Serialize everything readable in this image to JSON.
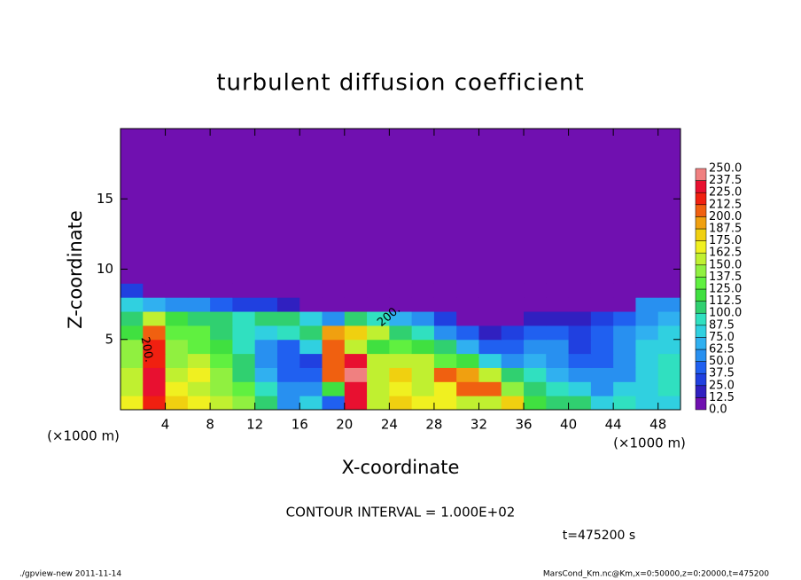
{
  "chart_data": {
    "type": "heatmap",
    "title": "turbulent diffusion coefficient",
    "x_label": "X-coordinate",
    "y_label": "Z-coordinate",
    "x_unit_label": "(×1000 m)",
    "y_unit_label": "(×1000 m)",
    "xlim": [
      0,
      50
    ],
    "ylim": [
      0,
      20
    ],
    "xticks": [
      4,
      8,
      12,
      16,
      20,
      24,
      28,
      32,
      36,
      40,
      44,
      48
    ],
    "yticks": [
      5,
      10,
      15
    ],
    "x_edges": [
      0,
      2,
      4,
      6,
      8,
      10,
      12,
      14,
      16,
      18,
      20,
      22,
      24,
      26,
      28,
      30,
      32,
      34,
      36,
      38,
      40,
      42,
      44,
      46,
      48,
      50
    ],
    "y_edges": [
      0,
      1,
      2,
      3,
      4,
      5,
      6,
      7,
      8,
      9,
      20
    ],
    "z": [
      [
        170,
        220,
        175,
        165,
        150,
        140,
        110,
        60,
        75,
        40,
        225,
        160,
        175,
        170,
        165,
        160,
        150,
        175,
        120,
        110,
        100,
        85,
        90,
        80,
        85
      ],
      [
        160,
        225,
        165,
        160,
        145,
        130,
        90,
        50,
        60,
        120,
        230,
        150,
        165,
        150,
        170,
        200,
        210,
        140,
        110,
        90,
        80,
        60,
        75,
        85,
        90
      ],
      [
        150,
        225,
        155,
        170,
        140,
        110,
        70,
        45,
        40,
        200,
        245,
        160,
        175,
        160,
        210,
        190,
        160,
        100,
        90,
        70,
        60,
        50,
        60,
        80,
        90
      ],
      [
        145,
        220,
        140,
        150,
        130,
        100,
        60,
        40,
        35,
        210,
        230,
        150,
        160,
        150,
        130,
        120,
        80,
        60,
        70,
        55,
        40,
        40,
        60,
        80,
        90
      ],
      [
        140,
        215,
        140,
        130,
        120,
        95,
        55,
        40,
        80,
        200,
        160,
        120,
        130,
        120,
        100,
        70,
        40,
        40,
        60,
        50,
        35,
        40,
        55,
        75,
        85
      ],
      [
        120,
        205,
        130,
        125,
        110,
        90,
        80,
        90,
        110,
        190,
        180,
        150,
        110,
        90,
        60,
        40,
        20,
        25,
        40,
        40,
        30,
        40,
        50,
        70,
        80
      ],
      [
        100,
        150,
        120,
        110,
        100,
        90,
        100,
        110,
        80,
        60,
        100,
        90,
        70,
        50,
        25,
        10,
        5,
        10,
        20,
        20,
        20,
        30,
        40,
        60,
        70
      ],
      [
        75,
        70,
        60,
        50,
        40,
        35,
        30,
        20,
        10,
        5,
        5,
        5,
        5,
        5,
        5,
        5,
        5,
        5,
        5,
        5,
        5,
        5,
        10,
        50,
        60
      ],
      [
        30,
        10,
        5,
        5,
        5,
        5,
        5,
        5,
        5,
        5,
        5,
        5,
        5,
        5,
        5,
        5,
        5,
        5,
        5,
        5,
        5,
        5,
        5,
        5,
        5
      ],
      [
        0,
        0,
        0,
        0,
        0,
        0,
        0,
        0,
        0,
        0,
        0,
        0,
        0,
        0,
        0,
        0,
        0,
        0,
        0,
        0,
        0,
        0,
        0,
        0,
        0
      ]
    ],
    "colorbar_ticks": [
      {
        "value": 0,
        "label": "0.0"
      },
      {
        "value": 12.5,
        "label": "12.5"
      },
      {
        "value": 25,
        "label": "25.0"
      },
      {
        "value": 37.5,
        "label": "37.5"
      },
      {
        "value": 50,
        "label": "50.0"
      },
      {
        "value": 62.5,
        "label": "62.5"
      },
      {
        "value": 75,
        "label": "75.0"
      },
      {
        "value": 87.5,
        "label": "87.5"
      },
      {
        "value": 100,
        "label": "100.0"
      },
      {
        "value": 112.5,
        "label": "112.5"
      },
      {
        "value": 125,
        "label": "125.0"
      },
      {
        "value": 137.5,
        "label": "137.5"
      },
      {
        "value": 150,
        "label": "150.0"
      },
      {
        "value": 162.5,
        "label": "162.5"
      },
      {
        "value": 175,
        "label": "175.0"
      },
      {
        "value": 187.5,
        "label": "187.5"
      },
      {
        "value": 200,
        "label": "200.0"
      },
      {
        "value": 212.5,
        "label": "212.5"
      },
      {
        "value": 225,
        "label": "225.0"
      },
      {
        "value": 237.5,
        "label": "237.5"
      },
      {
        "value": 250,
        "label": "250.0"
      }
    ],
    "colors": [
      "#7010b0",
      "#3020c0",
      "#2040e0",
      "#2060f0",
      "#2890f0",
      "#30b0f0",
      "#30d0e0",
      "#30e0c0",
      "#30d070",
      "#40e040",
      "#60f040",
      "#90f040",
      "#c0f030",
      "#f0f020",
      "#f0d010",
      "#f0a010",
      "#f06010",
      "#f02010",
      "#e81030",
      "#f08080"
    ],
    "annotations": [
      "200.",
      "200."
    ],
    "contour_interval_label": "CONTOUR INTERVAL = 1.000E+02",
    "time_label": "t=475200 s",
    "footer_left": "./gpview-new  2011-11-14",
    "footer_right": "MarsCond_Km.nc@Km,x=0:50000,z=0:20000,t=475200"
  }
}
